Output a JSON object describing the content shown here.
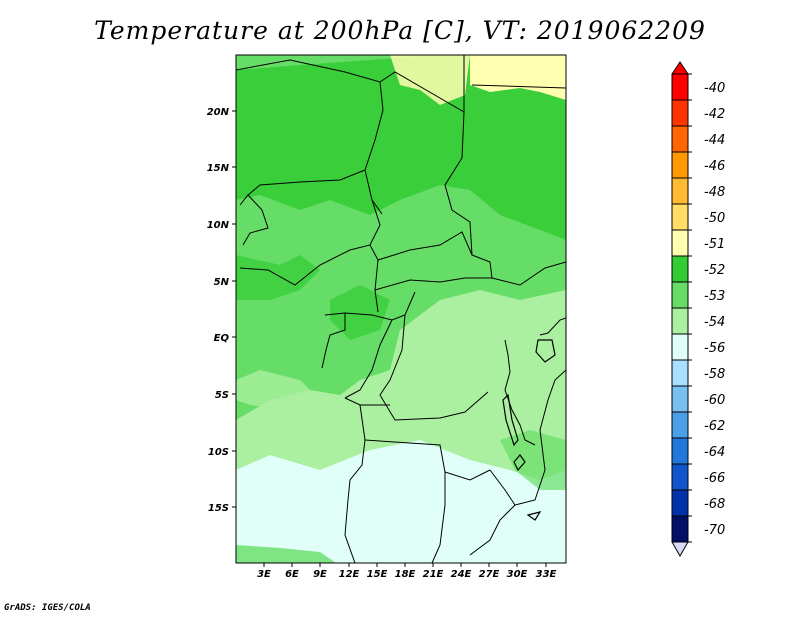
{
  "title": "Temperature at 200hPa [C], VT: 2019062209",
  "credit": "GrADS: IGES/COLA",
  "map": {
    "lon_labels": [
      "3E",
      "6E",
      "9E",
      "12E",
      "15E",
      "18E",
      "21E",
      "24E",
      "27E",
      "30E",
      "33E"
    ],
    "lat_labels": [
      "20N",
      "15N",
      "10N",
      "5N",
      "EQ",
      "5S",
      "10S",
      "15S"
    ]
  },
  "colorbar": {
    "labels": [
      "-40",
      "-42",
      "-44",
      "-46",
      "-48",
      "-50",
      "-51",
      "-52",
      "-53",
      "-54",
      "-56",
      "-58",
      "-60",
      "-62",
      "-64",
      "-66",
      "-68",
      "-70"
    ],
    "colors": [
      "#ff0000",
      "#ff3300",
      "#ff6600",
      "#ff9900",
      "#ffbb33",
      "#ffdd66",
      "#ffffb0",
      "#33cc33",
      "#66dd66",
      "#aaf0a0",
      "#e0fff8",
      "#aae0ff",
      "#77c0f0",
      "#4aa0e8",
      "#2277dd",
      "#1155cc",
      "#0033aa",
      "#001166"
    ],
    "min_color": "#d8d8f8"
  }
}
